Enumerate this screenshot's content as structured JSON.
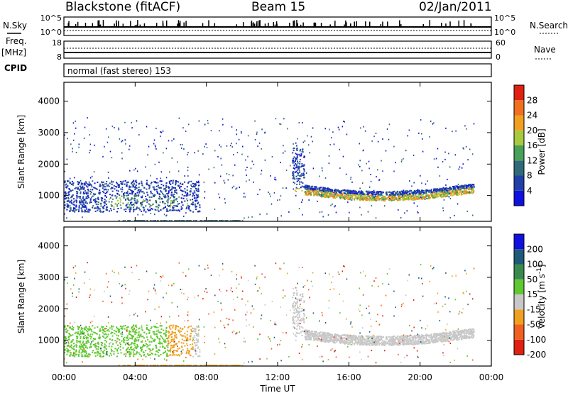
{
  "header": {
    "title": "Blackstone (fitACF)",
    "beam": "Beam 15",
    "date": "02/Jan/2011"
  },
  "status_panel": {
    "nsky_label": "N.Sky",
    "nsky_ticks": [
      "10^5",
      "10^0"
    ],
    "nsearch_label": "N.Search",
    "nsearch_ticks": [
      "10^5",
      "10^0"
    ],
    "freq_label": "Freq.",
    "freq_unit": "[MHz]",
    "freq_ticks": [
      "18",
      "8"
    ],
    "nave_label": "Nave",
    "nave_ticks": [
      "60",
      "0"
    ],
    "cpid_label": "CPID",
    "cpid_text": "normal (fast stereo) 153"
  },
  "chart_data": [
    {
      "type": "heatmap",
      "name": "power",
      "ylabel": "Slant Range [km]",
      "ylim": [
        180,
        4600
      ],
      "yticks": [
        "1000",
        "2000",
        "3000",
        "4000"
      ],
      "colorbar_label": "Power [dB]",
      "colorbar_ticks": [
        "4",
        "8",
        "12",
        "16",
        "20",
        "24",
        "28"
      ],
      "colors": [
        "#1010e0",
        "#2040a8",
        "#2f6a7a",
        "#4aa057",
        "#a8c840",
        "#f0a020",
        "#f07020",
        "#e02010"
      ],
      "scatter_regions": [
        {
          "t": [
            0.0,
            7.8
          ],
          "r": [
            450,
            1500
          ],
          "power": [
            4,
            20
          ]
        },
        {
          "t": [
            12.7,
            23.0
          ],
          "r": [
            700,
            2600
          ],
          "power": [
            4,
            28
          ]
        }
      ]
    },
    {
      "type": "heatmap",
      "name": "velocity",
      "ylabel": "Slant Range [km]",
      "ylim": [
        180,
        4600
      ],
      "yticks": [
        "1000",
        "2000",
        "3000",
        "4000"
      ],
      "colorbar_label": "Velocity [m s",
      "colorbar_label_sup": "-1",
      "colorbar_label_end": "]",
      "colorbar_ticks": [
        "200",
        "100",
        "50",
        "15",
        "-15",
        "-50",
        "-100",
        "-200"
      ],
      "colors": [
        "#1010e0",
        "#205a7a",
        "#3a8a50",
        "#60c830",
        "#c8c8c8",
        "#f0a020",
        "#f06020",
        "#e02010"
      ],
      "xlabel": "Time UT",
      "xticks": [
        "00:00",
        "04:00",
        "08:00",
        "12:00",
        "16:00",
        "20:00",
        "00:00"
      ],
      "xlim": [
        0,
        24
      ]
    }
  ]
}
